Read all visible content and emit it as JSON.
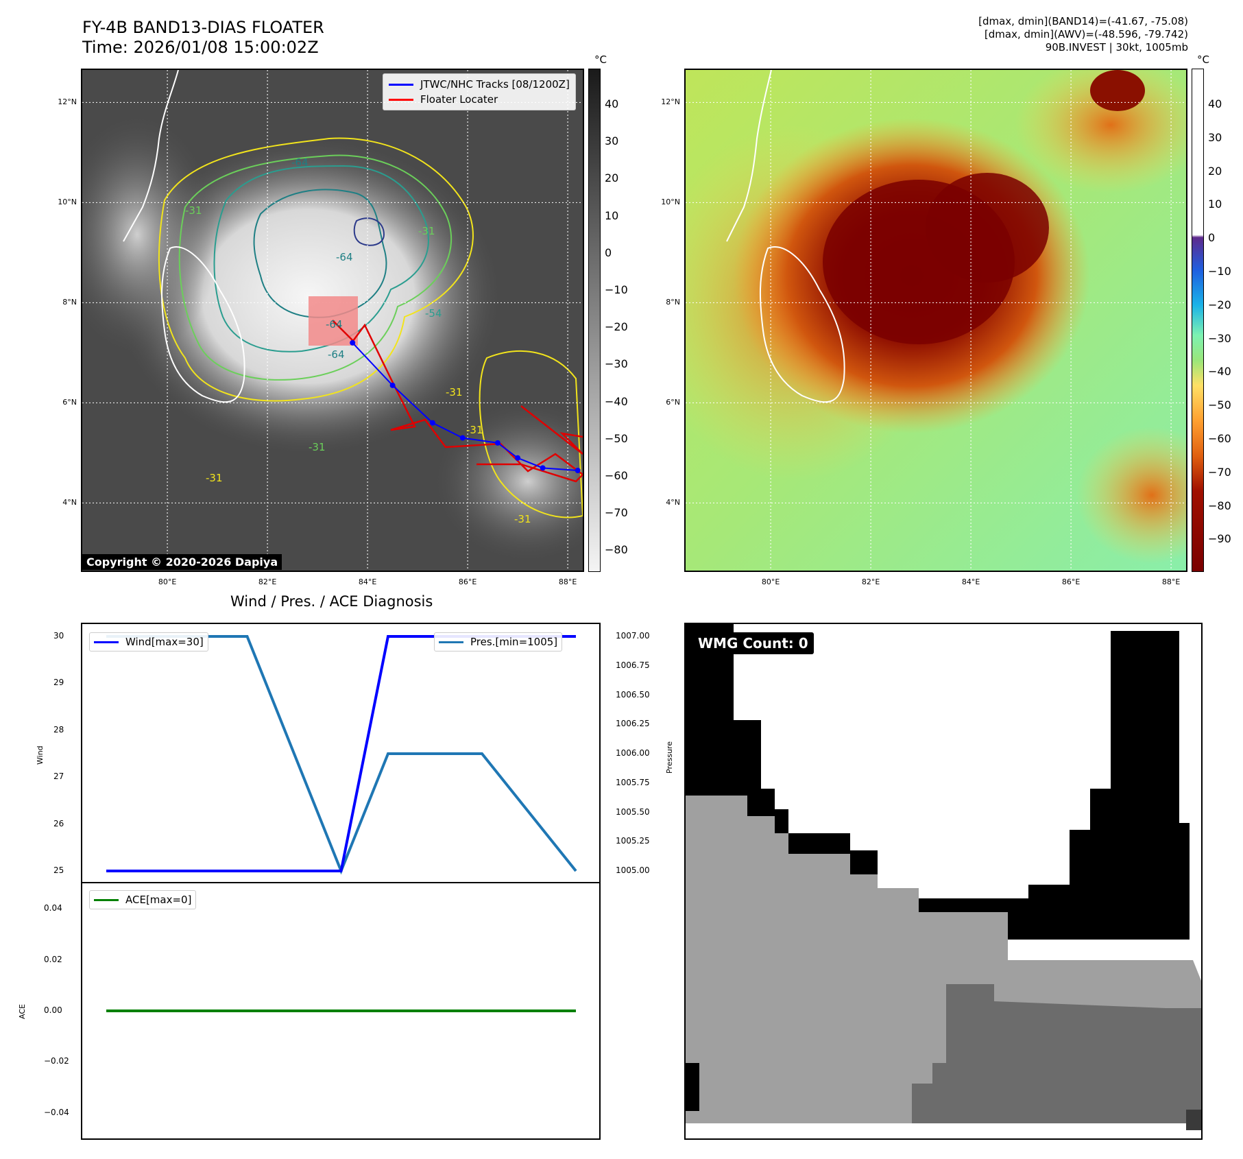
{
  "header": {
    "title_line1": "FY-4B BAND13-DIAS FLOATER",
    "title_line2": "Time: 2026/01/08 15:00:02Z",
    "info_line1": "[dmax, dmin](BAND14)=(-41.67, -75.08)",
    "info_line2": "[dmax, dmin](AWV)=(-48.596, -79.742)",
    "info_line3": "90B.INVEST | 30kt, 1005mb"
  },
  "map": {
    "lat_labels": [
      "12°N",
      "10°N",
      "8°N",
      "6°N",
      "4°N"
    ],
    "lon_labels": [
      "80°E",
      "82°E",
      "84°E",
      "86°E",
      "88°E"
    ],
    "legend": [
      {
        "label": "JTWC/NHC Tracks [08/1200Z]",
        "color": "#0000ff"
      },
      {
        "label": "Floater Locater",
        "color": "#ff0000"
      }
    ],
    "contour_labels": [
      "-64",
      "-64",
      "-64",
      "-64",
      "-31",
      "-31",
      "-31",
      "-31",
      "-31",
      "-31",
      "-31",
      "-54"
    ],
    "copyright": "Copyright © 2020-2026 Dapiya",
    "track": [
      {
        "lon": 83.7,
        "lat": 7.2
      },
      {
        "lon": 84.5,
        "lat": 6.35
      },
      {
        "lon": 85.3,
        "lat": 5.6
      },
      {
        "lon": 85.9,
        "lat": 5.3
      },
      {
        "lon": 86.6,
        "lat": 5.2
      },
      {
        "lon": 87.0,
        "lat": 4.9
      },
      {
        "lon": 87.5,
        "lat": 4.7
      },
      {
        "lon": 88.2,
        "lat": 4.65
      }
    ]
  },
  "colorbar_left": {
    "unit": "°C",
    "ticks": [
      "40",
      "30",
      "20",
      "10",
      "0",
      "−10",
      "−20",
      "−30",
      "−40",
      "−50",
      "−60",
      "−70",
      "−80"
    ],
    "colors": [
      "#1a1a1a",
      "#f4f4f4"
    ]
  },
  "colorbar_right": {
    "unit": "°C",
    "ticks": [
      "40",
      "30",
      "20",
      "10",
      "0",
      "−10",
      "−20",
      "−30",
      "−40",
      "−50",
      "−60",
      "−70",
      "−80",
      "−90"
    ],
    "colors": [
      "#ffffff",
      "#5e2a8c",
      "#1f5fe0",
      "#1bb3e8",
      "#7df2b2",
      "#9ae67a",
      "#ffe066",
      "#ffa030",
      "#e06010",
      "#a01000",
      "#7a0000"
    ]
  },
  "diagnosis": {
    "title": "Wind / Pres. / ACE Diagnosis",
    "wind_label": "Wind",
    "pressure_label": "Pressure",
    "ace_label": "ACE",
    "wind_legend": "Wind[max=30]",
    "pres_legend": "Pres.[min=1005]",
    "ace_legend": "ACE[max=0]",
    "wind_ticks": [
      "30",
      "29",
      "28",
      "27",
      "26",
      "25"
    ],
    "pres_ticks": [
      "1007.00",
      "1006.75",
      "1006.50",
      "1006.25",
      "1006.00",
      "1005.75",
      "1005.50",
      "1005.25",
      "1005.00"
    ],
    "ace_ticks": [
      "0.04",
      "0.02",
      "0.00",
      "−0.02",
      "−0.04"
    ],
    "colors": {
      "wind": "#0000ff",
      "pres": "#1f77b4",
      "ace": "#008000"
    }
  },
  "chart_data": {
    "type": "line",
    "x": [
      0,
      1,
      2,
      3,
      4,
      5,
      6,
      7,
      8,
      9,
      10
    ],
    "series": [
      {
        "name": "Wind[max=30]",
        "values": [
          25,
          25,
          25,
          25,
          25,
          25,
          30,
          30,
          30,
          30,
          30
        ]
      },
      {
        "name": "Pres.[min=1005]",
        "values": [
          1007,
          1007,
          1007,
          1007,
          1006,
          1005,
          1006,
          1006,
          1006,
          1005.5,
          1005
        ]
      },
      {
        "name": "ACE[max=0]",
        "values": [
          0,
          0,
          0,
          0,
          0,
          0,
          0,
          0,
          0,
          0,
          0
        ]
      }
    ],
    "wind_ylim": [
      25,
      30
    ],
    "pres_ylim": [
      1005,
      1007
    ],
    "ace_ylim": [
      -0.05,
      0.05
    ],
    "grid": false
  },
  "wmg": {
    "label": "WMG Count: 0"
  }
}
